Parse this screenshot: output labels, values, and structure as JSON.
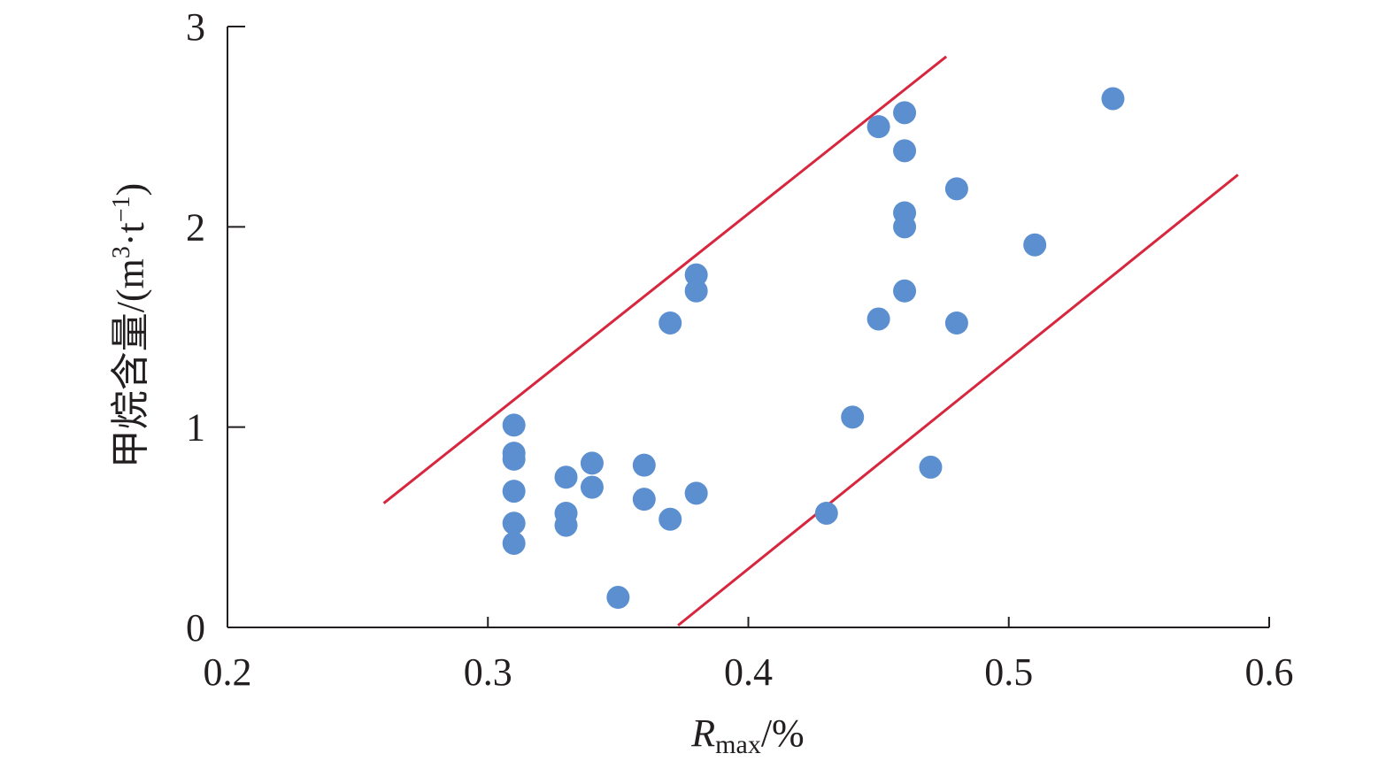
{
  "chart_data": {
    "type": "scatter",
    "xlabel": {
      "main": "R",
      "sub": "max",
      "suffix": "/%"
    },
    "ylabel": {
      "text": "甲烷含量/(m",
      "sup1": "3",
      "mid": "·t",
      "sup2": "−1",
      "end": ")"
    },
    "xlim": [
      0.2,
      0.6
    ],
    "ylim": [
      0,
      3
    ],
    "x_ticks": [
      "0.2",
      "0.3",
      "0.4",
      "0.5",
      "0.6"
    ],
    "y_ticks": [
      "0",
      "1",
      "2",
      "3"
    ],
    "point_color": "#5b8fd0",
    "line_color": "#d7263d",
    "points": [
      {
        "x": 0.31,
        "y": 1.01
      },
      {
        "x": 0.31,
        "y": 0.87
      },
      {
        "x": 0.31,
        "y": 0.84
      },
      {
        "x": 0.31,
        "y": 0.68
      },
      {
        "x": 0.31,
        "y": 0.52
      },
      {
        "x": 0.31,
        "y": 0.42
      },
      {
        "x": 0.33,
        "y": 0.75
      },
      {
        "x": 0.33,
        "y": 0.57
      },
      {
        "x": 0.33,
        "y": 0.51
      },
      {
        "x": 0.34,
        "y": 0.82
      },
      {
        "x": 0.34,
        "y": 0.7
      },
      {
        "x": 0.35,
        "y": 0.15
      },
      {
        "x": 0.36,
        "y": 0.81
      },
      {
        "x": 0.36,
        "y": 0.64
      },
      {
        "x": 0.37,
        "y": 1.52
      },
      {
        "x": 0.37,
        "y": 0.54
      },
      {
        "x": 0.38,
        "y": 1.76
      },
      {
        "x": 0.38,
        "y": 1.68
      },
      {
        "x": 0.38,
        "y": 0.67
      },
      {
        "x": 0.43,
        "y": 0.57
      },
      {
        "x": 0.44,
        "y": 1.05
      },
      {
        "x": 0.45,
        "y": 2.5
      },
      {
        "x": 0.45,
        "y": 1.54
      },
      {
        "x": 0.46,
        "y": 2.57
      },
      {
        "x": 0.46,
        "y": 2.38
      },
      {
        "x": 0.46,
        "y": 2.07
      },
      {
        "x": 0.46,
        "y": 2.0
      },
      {
        "x": 0.46,
        "y": 1.68
      },
      {
        "x": 0.47,
        "y": 0.8
      },
      {
        "x": 0.48,
        "y": 2.19
      },
      {
        "x": 0.48,
        "y": 1.52
      },
      {
        "x": 0.51,
        "y": 1.91
      },
      {
        "x": 0.54,
        "y": 2.64
      }
    ],
    "boundary_lines": [
      {
        "x1": 0.26,
        "y1": 0.62,
        "x2": 0.476,
        "y2": 2.85
      },
      {
        "x1": 0.373,
        "y1": 0.01,
        "x2": 0.588,
        "y2": 2.26
      }
    ]
  }
}
